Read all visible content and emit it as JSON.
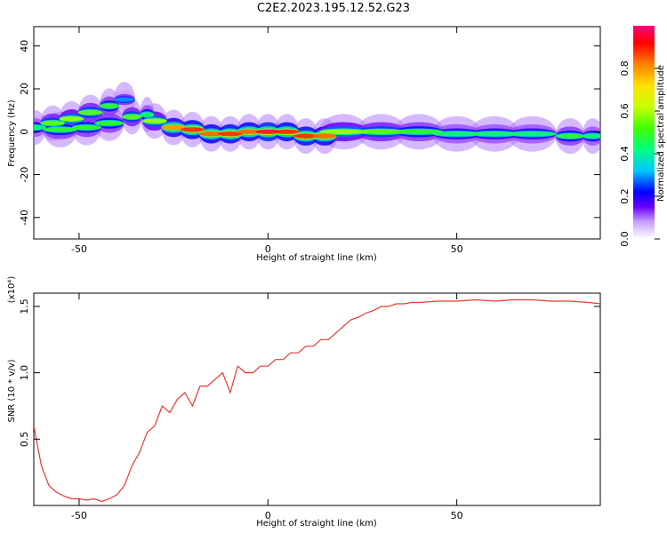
{
  "title": "C2E2.2023.195.12.52.G23",
  "chart_data": [
    {
      "type": "heatmap",
      "xlabel": "Height of straight line (km)",
      "ylabel": "Frequency (Hz)",
      "xlim": [
        -62,
        88
      ],
      "ylim": [
        -50,
        49
      ],
      "xticks": [
        -50,
        0,
        50
      ],
      "yticks": [
        -40,
        -20,
        0,
        20,
        40
      ],
      "colorbar": {
        "label": "Normalized spectral amplitude",
        "range": [
          0,
          1
        ],
        "ticks": [
          "0.0",
          "0.2",
          "0.4",
          "0.6",
          "0.8"
        ],
        "ticks_values": [
          0.0,
          0.2,
          0.4,
          0.6,
          0.8
        ]
      },
      "ridge": [
        {
          "x": -62,
          "y": 2,
          "amp": 0.45
        },
        {
          "x": -57,
          "y": 4,
          "amp": 0.55
        },
        {
          "x": -52,
          "y": 6,
          "amp": 0.6
        },
        {
          "x": -47,
          "y": 9,
          "amp": 0.55
        },
        {
          "x": -42,
          "y": 12,
          "amp": 0.5
        },
        {
          "x": -38,
          "y": 15,
          "amp": 0.3
        },
        {
          "x": -55,
          "y": 1,
          "amp": 0.5
        },
        {
          "x": -48,
          "y": 2,
          "amp": 0.5
        },
        {
          "x": -42,
          "y": 4,
          "amp": 0.5
        },
        {
          "x": -36,
          "y": 7,
          "amp": 0.55
        },
        {
          "x": -32,
          "y": 8,
          "amp": 0.45
        },
        {
          "x": -30,
          "y": 5,
          "amp": 0.6
        },
        {
          "x": -25,
          "y": 2,
          "amp": 0.8
        },
        {
          "x": -20,
          "y": 1,
          "amp": 0.9
        },
        {
          "x": -15,
          "y": -1,
          "amp": 0.85
        },
        {
          "x": -10,
          "y": -1,
          "amp": 0.9
        },
        {
          "x": -5,
          "y": 0,
          "amp": 0.85
        },
        {
          "x": 0,
          "y": 0,
          "amp": 0.95
        },
        {
          "x": 5,
          "y": 0,
          "amp": 0.9
        },
        {
          "x": 10,
          "y": -2,
          "amp": 0.9
        },
        {
          "x": 15,
          "y": -2,
          "amp": 0.85
        },
        {
          "x": 20,
          "y": 0,
          "amp": 0.6
        },
        {
          "x": 30,
          "y": 0,
          "amp": 0.55
        },
        {
          "x": 40,
          "y": 0,
          "amp": 0.5
        },
        {
          "x": 50,
          "y": -1,
          "amp": 0.45
        },
        {
          "x": 60,
          "y": -1,
          "amp": 0.45
        },
        {
          "x": 70,
          "y": -1,
          "amp": 0.45
        },
        {
          "x": 80,
          "y": -2,
          "amp": 0.5
        },
        {
          "x": 86,
          "y": -2,
          "amp": 0.45
        }
      ]
    },
    {
      "type": "line",
      "xlabel": "Height of straight line (km)",
      "ylabel": "SNR (10 * v/v)",
      "yscale_label": "(x10⁴)",
      "xlim": [
        -62,
        88
      ],
      "ylim": [
        0,
        1.6
      ],
      "xticks": [
        -50,
        0,
        50
      ],
      "yticks": [
        0.5,
        1.0,
        1.5
      ],
      "ytick_labels": [
        "0.5",
        "1.0",
        "1.5"
      ],
      "color": "#e53935",
      "series": [
        {
          "x": [
            -62,
            -60,
            -58,
            -56,
            -54,
            -52,
            -50,
            -48,
            -46,
            -44,
            -42,
            -40,
            -38,
            -36,
            -34,
            -32,
            -30,
            -28,
            -26,
            -24,
            -22,
            -20,
            -18,
            -16,
            -14,
            -12,
            -10,
            -8,
            -6,
            -4,
            -2,
            0,
            2,
            4,
            6,
            8,
            10,
            12,
            14,
            16,
            18,
            20,
            22,
            24,
            26,
            28,
            30,
            32,
            34,
            36,
            38,
            40,
            45,
            50,
            55,
            60,
            65,
            70,
            75,
            80,
            85,
            88
          ],
          "y": [
            0.6,
            0.3,
            0.15,
            0.1,
            0.07,
            0.05,
            0.05,
            0.04,
            0.05,
            0.03,
            0.05,
            0.08,
            0.15,
            0.3,
            0.4,
            0.55,
            0.6,
            0.75,
            0.7,
            0.8,
            0.85,
            0.75,
            0.9,
            0.9,
            0.95,
            1.0,
            0.85,
            1.05,
            1.0,
            1.0,
            1.05,
            1.05,
            1.1,
            1.1,
            1.15,
            1.15,
            1.2,
            1.2,
            1.25,
            1.25,
            1.3,
            1.35,
            1.4,
            1.42,
            1.45,
            1.47,
            1.5,
            1.5,
            1.52,
            1.52,
            1.53,
            1.53,
            1.54,
            1.54,
            1.55,
            1.54,
            1.55,
            1.55,
            1.54,
            1.54,
            1.53,
            1.52
          ]
        }
      ]
    }
  ]
}
